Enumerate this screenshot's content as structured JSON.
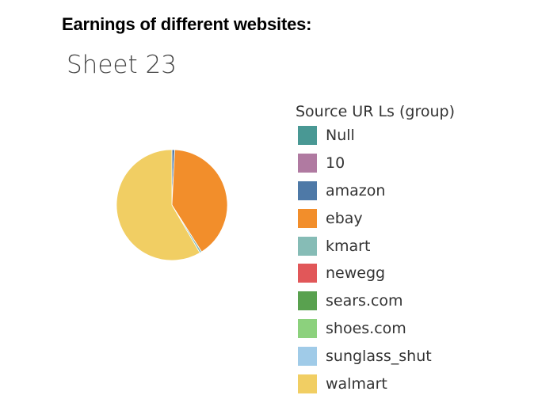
{
  "caption": "Earnings of different websites:",
  "sheet_title": "Sheet 23",
  "legend": {
    "title": "Source UR Ls (group)",
    "items": [
      {
        "label": "Null",
        "color": "#499894"
      },
      {
        "label": "10",
        "color": "#B07AA1"
      },
      {
        "label": "amazon",
        "color": "#4E79A7"
      },
      {
        "label": "ebay",
        "color": "#F28E2B"
      },
      {
        "label": "kmart",
        "color": "#86BCB6"
      },
      {
        "label": "newegg",
        "color": "#E15759"
      },
      {
        "label": "sears.com",
        "color": "#59A14F"
      },
      {
        "label": "shoes.com",
        "color": "#8CD17D"
      },
      {
        "label": "sunglass_shut",
        "color": "#A0CBE8"
      },
      {
        "label": "walmart",
        "color": "#F1CE63"
      }
    ]
  },
  "chart_data": {
    "type": "pie",
    "title": "Sheet 23",
    "legend_title": "Source UR Ls (group)",
    "legend_position": "right",
    "start_angle_deg": 0,
    "direction": "clockwise",
    "slices": [
      {
        "label": "Null",
        "value": 0.0,
        "color": "#499894"
      },
      {
        "label": "10",
        "value": 0.0,
        "color": "#B07AA1"
      },
      {
        "label": "amazon",
        "value": 0.8,
        "color": "#4E79A7"
      },
      {
        "label": "ebay",
        "value": 40.2,
        "color": "#F28E2B"
      },
      {
        "label": "kmart",
        "value": 0.6,
        "color": "#86BCB6"
      },
      {
        "label": "newegg",
        "value": 0.0,
        "color": "#E15759"
      },
      {
        "label": "sears.com",
        "value": 0.0,
        "color": "#59A14F"
      },
      {
        "label": "shoes.com",
        "value": 0.0,
        "color": "#8CD17D"
      },
      {
        "label": "sunglass_shut",
        "value": 0.0,
        "color": "#A0CBE8"
      },
      {
        "label": "walmart",
        "value": 58.4,
        "color": "#F1CE63"
      }
    ]
  }
}
